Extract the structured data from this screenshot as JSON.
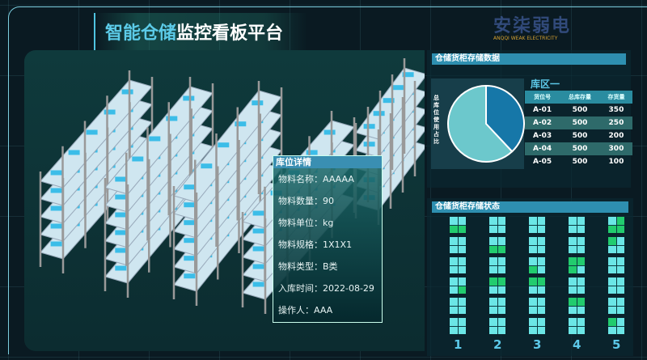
{
  "header": {
    "title_highlight": "智能仓储",
    "title_rest": "监控看板平台"
  },
  "storage_data": {
    "title": "仓储货柜存储数据",
    "pie_label": "总库位使用占比",
    "zone": "库区一",
    "columns": [
      "货位号",
      "总库存量",
      "存货量"
    ],
    "rows": [
      [
        "A-01",
        "500",
        "350"
      ],
      [
        "A-02",
        "500",
        "250"
      ],
      [
        "A-03",
        "500",
        "200"
      ],
      [
        "A-04",
        "500",
        "300"
      ],
      [
        "A-05",
        "500",
        "100"
      ]
    ],
    "pie": [
      {
        "value": 38,
        "color": "#1677a8"
      },
      {
        "value": 62,
        "color": "#6cc8cc"
      }
    ]
  },
  "storage_status": {
    "title": "仓储货柜存储状态",
    "columns": [
      {
        "label": "1",
        "boxes": [
          [
            0,
            0,
            1,
            1
          ],
          [
            0,
            0,
            0,
            0
          ],
          [
            0,
            0,
            0,
            0
          ],
          [
            0,
            0,
            0,
            1
          ],
          [
            0,
            0,
            0,
            0
          ],
          [
            0,
            0,
            0,
            0
          ]
        ]
      },
      {
        "label": "2",
        "boxes": [
          [
            0,
            0,
            0,
            0
          ],
          [
            0,
            0,
            1,
            1
          ],
          [
            0,
            0,
            0,
            0
          ],
          [
            1,
            1,
            0,
            0
          ],
          [
            0,
            0,
            0,
            0
          ],
          [
            0,
            0,
            0,
            0
          ]
        ]
      },
      {
        "label": "3",
        "boxes": [
          [
            0,
            0,
            0,
            0
          ],
          [
            0,
            0,
            0,
            0
          ],
          [
            0,
            0,
            1,
            0
          ],
          [
            1,
            1,
            0,
            0
          ],
          [
            0,
            0,
            0,
            0
          ],
          [
            0,
            0,
            0,
            0
          ]
        ]
      },
      {
        "label": "4",
        "boxes": [
          [
            0,
            0,
            0,
            0
          ],
          [
            0,
            0,
            0,
            0
          ],
          [
            1,
            1,
            1,
            0
          ],
          [
            0,
            0,
            0,
            0
          ],
          [
            1,
            1,
            0,
            0
          ],
          [
            0,
            0,
            0,
            0
          ]
        ]
      },
      {
        "label": "5",
        "boxes": [
          [
            0,
            1,
            1,
            1
          ],
          [
            1,
            0,
            0,
            0
          ],
          [
            0,
            0,
            0,
            0
          ],
          [
            0,
            0,
            0,
            0
          ],
          [
            0,
            0,
            0,
            0
          ],
          [
            1,
            0,
            0,
            0
          ]
        ]
      }
    ]
  },
  "location_detail": {
    "title": "库位详情",
    "fields": [
      "物料名称：AAAAA",
      "物料数量：90",
      "物料单位：kg",
      "物料规格：1X1X1",
      "物料类型：B类",
      "入库时间：2022-08-29",
      "操作人：AAA"
    ]
  },
  "watermark": {
    "name": "安柒弱电",
    "sub": "ANQQI WEAK ELECTRICITY"
  }
}
